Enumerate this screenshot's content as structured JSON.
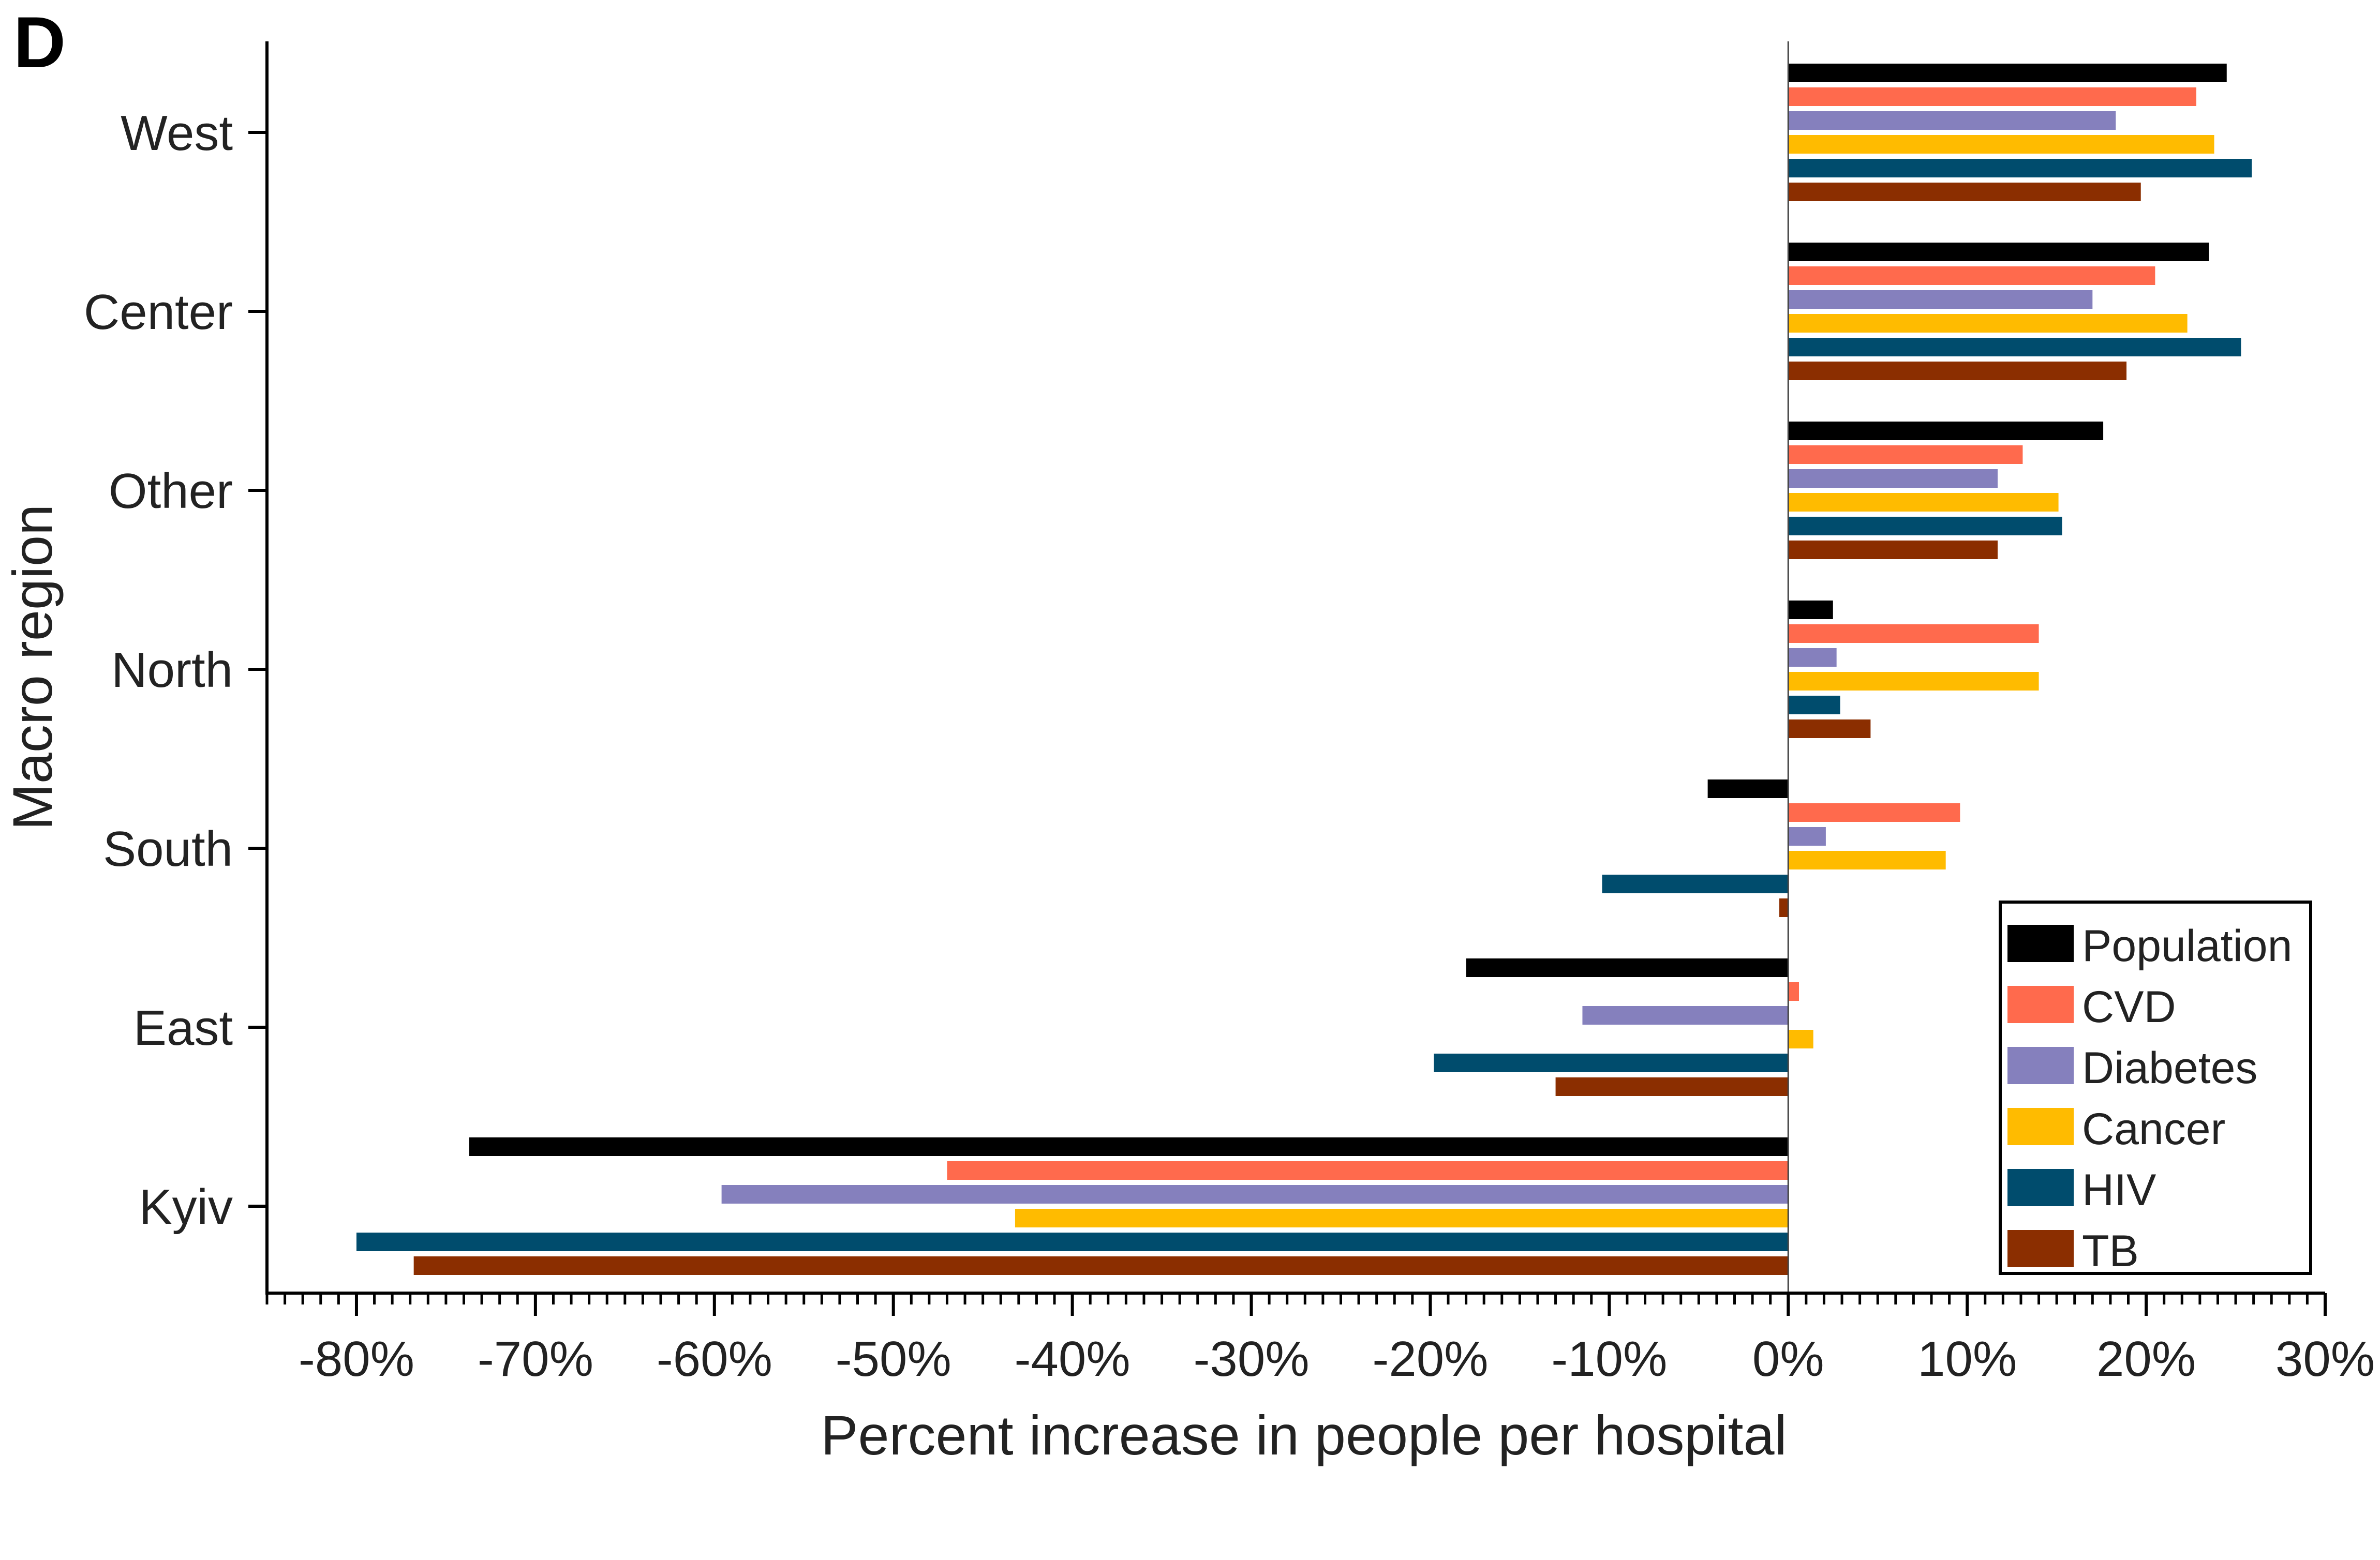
{
  "panel_label": "D",
  "chart_data": {
    "type": "bar",
    "orientation": "horizontal",
    "xlabel": "Percent increase in people per hospital",
    "ylabel": "Macro region",
    "xlim": [
      -85,
      30
    ],
    "x_ticks": [
      {
        "value": -80,
        "label": "-80%"
      },
      {
        "value": -70,
        "label": "-70%"
      },
      {
        "value": -60,
        "label": "-60%"
      },
      {
        "value": -50,
        "label": "-50%"
      },
      {
        "value": -40,
        "label": "-40%"
      },
      {
        "value": -30,
        "label": "-30%"
      },
      {
        "value": -20,
        "label": "-20%"
      },
      {
        "value": -10,
        "label": "-10%"
      },
      {
        "value": 0,
        "label": "0%"
      },
      {
        "value": 10,
        "label": "10%"
      },
      {
        "value": 20,
        "label": "20%"
      },
      {
        "value": 30,
        "label": "30%"
      }
    ],
    "x_minor_tick_step": 1,
    "categories": [
      "West",
      "Center",
      "Other",
      "North",
      "South",
      "East",
      "Kyiv"
    ],
    "series": [
      {
        "name": "Population",
        "color": "#000000",
        "values": [
          24.5,
          23.5,
          17.6,
          2.5,
          -4.5,
          -18.0,
          -73.7
        ]
      },
      {
        "name": "CVD",
        "color": "#FF6A4D",
        "values": [
          22.8,
          20.5,
          13.1,
          14.0,
          9.6,
          0.6,
          -47.0
        ]
      },
      {
        "name": "Diabetes",
        "color": "#8580BD",
        "values": [
          18.3,
          17.0,
          11.7,
          2.7,
          2.1,
          -11.5,
          -59.6
        ]
      },
      {
        "name": "Cancer",
        "color": "#FFBB00",
        "values": [
          23.8,
          22.3,
          15.1,
          14.0,
          8.8,
          1.4,
          -43.2
        ]
      },
      {
        "name": "HIV",
        "color": "#004C6D",
        "values": [
          25.9,
          25.3,
          15.3,
          2.9,
          -10.4,
          -19.8,
          -80.0
        ]
      },
      {
        "name": "TB",
        "color": "#8B2E00",
        "values": [
          19.7,
          18.9,
          11.7,
          4.6,
          -0.5,
          -13.0,
          -76.8
        ]
      }
    ],
    "legend_position": "bottom-right",
    "grid": false
  }
}
